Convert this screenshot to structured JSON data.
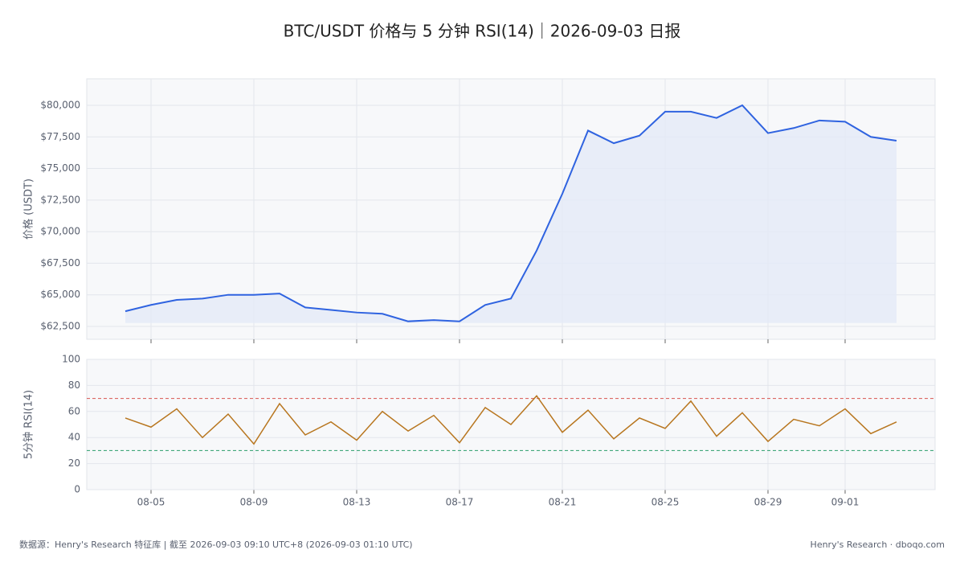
{
  "title": "BTC/USDT 价格与 5 分钟 RSI(14)｜2026-09-03 日报",
  "chart_data": [
    {
      "type": "line",
      "y_label": "价格 (USDT)",
      "color": "#2f63e0",
      "fill": "#e3eaf8",
      "x": [
        "08-04",
        "08-05",
        "08-06",
        "08-07",
        "08-08",
        "08-09",
        "08-10",
        "08-11",
        "08-12",
        "08-13",
        "08-14",
        "08-15",
        "08-16",
        "08-17",
        "08-18",
        "08-19",
        "08-20",
        "08-21",
        "08-22",
        "08-23",
        "08-24",
        "08-25",
        "08-26",
        "08-27",
        "08-28",
        "08-29",
        "08-30",
        "08-31",
        "09-01",
        "09-02",
        "09-03"
      ],
      "values": [
        63700,
        64200,
        64600,
        64700,
        65000,
        65000,
        65100,
        64000,
        63800,
        63600,
        63500,
        62900,
        63000,
        62900,
        64200,
        64700,
        68500,
        73000,
        78000,
        77000,
        77600,
        79500,
        79500,
        79000,
        80000,
        77800,
        78200,
        78800,
        78700,
        77500,
        77200
      ],
      "ylim": [
        61480,
        82100
      ],
      "yticks": [
        {
          "value": 62500,
          "label": "$62,500"
        },
        {
          "value": 65000,
          "label": "$65,000"
        },
        {
          "value": 67500,
          "label": "$67,500"
        },
        {
          "value": 70000,
          "label": "$70,000"
        },
        {
          "value": 72500,
          "label": "$72,500"
        },
        {
          "value": 75000,
          "label": "$75,000"
        },
        {
          "value": 77500,
          "label": "$77,500"
        },
        {
          "value": 80000,
          "label": "$80,000"
        }
      ],
      "grid": true
    },
    {
      "type": "line",
      "y_label": "5分钟 RSI(14)",
      "color": "#b8761f",
      "x": [
        "08-04",
        "08-05",
        "08-06",
        "08-07",
        "08-08",
        "08-09",
        "08-10",
        "08-11",
        "08-12",
        "08-13",
        "08-14",
        "08-15",
        "08-16",
        "08-17",
        "08-18",
        "08-19",
        "08-20",
        "08-21",
        "08-22",
        "08-23",
        "08-24",
        "08-25",
        "08-26",
        "08-27",
        "08-28",
        "08-29",
        "08-30",
        "08-31",
        "09-01",
        "09-02",
        "09-03"
      ],
      "values": [
        55,
        48,
        62,
        40,
        58,
        35,
        66,
        42,
        52,
        38,
        60,
        45,
        57,
        36,
        63,
        50,
        72,
        44,
        61,
        39,
        55,
        47,
        68,
        41,
        59,
        37,
        54,
        49,
        62,
        43,
        52
      ],
      "ylim": [
        0,
        100
      ],
      "yticks": [
        0,
        20,
        40,
        60,
        80,
        100
      ],
      "grid": true,
      "hlines": [
        {
          "value": 70,
          "color": "#d9534f"
        },
        {
          "value": 30,
          "color": "#2a9d6a"
        }
      ],
      "xticks": [
        "08-05",
        "08-09",
        "08-13",
        "08-17",
        "08-21",
        "08-25",
        "08-29",
        "09-01"
      ]
    }
  ],
  "footer": {
    "left": "数据源：Henry's Research 特征库 | 截至 2026-09-03 09:10 UTC+8 (2026-09-03 01:10 UTC)",
    "right": "Henry's Research · dboqo.com"
  }
}
